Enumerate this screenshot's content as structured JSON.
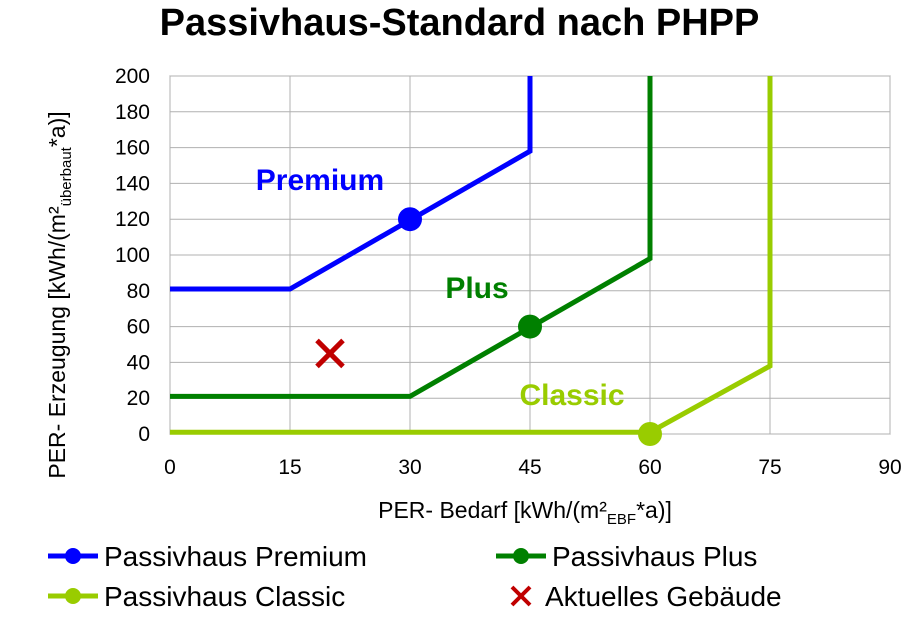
{
  "chart_data": {
    "type": "line",
    "title": "Passivhaus-Standard nach PHPP",
    "xlabel": "PER- Bedarf [kWh/(m²",
    "xlabel_sub": "EBF",
    "xlabel_end": "*a)]",
    "ylabel": "PER- Erzeugung [kWh/(m²",
    "ylabel_sub": "überbaut",
    "ylabel_end": "*a)]",
    "xlim": [
      0,
      90
    ],
    "ylim": [
      0,
      200
    ],
    "xticks": [
      0,
      15,
      30,
      45,
      60,
      75,
      90
    ],
    "yticks": [
      0,
      20,
      40,
      60,
      80,
      100,
      120,
      140,
      160,
      180,
      200
    ],
    "grid": true,
    "legend_position": "bottom",
    "series": [
      {
        "name": "Passivhaus Premium",
        "label": "Premium",
        "color": "#0000ff",
        "points": [
          [
            0,
            81
          ],
          [
            15,
            81
          ],
          [
            45,
            158
          ],
          [
            45,
            200
          ]
        ],
        "marker": [
          30,
          120
        ]
      },
      {
        "name": "Passivhaus Plus",
        "label": "Plus",
        "color": "#008000",
        "points": [
          [
            0,
            21
          ],
          [
            30,
            21
          ],
          [
            60,
            98
          ],
          [
            60,
            200
          ]
        ],
        "marker": [
          45,
          60
        ]
      },
      {
        "name": "Passivhaus Classic",
        "label": "Classic",
        "color": "#99cc00",
        "points": [
          [
            0,
            1
          ],
          [
            60,
            1
          ],
          [
            75,
            38
          ],
          [
            75,
            200
          ]
        ],
        "marker": [
          60,
          0
        ]
      }
    ],
    "current_building": {
      "name": "Aktuelles Gebäude",
      "x": 20,
      "y": 45,
      "color": "#c00000",
      "marker": "x"
    }
  }
}
